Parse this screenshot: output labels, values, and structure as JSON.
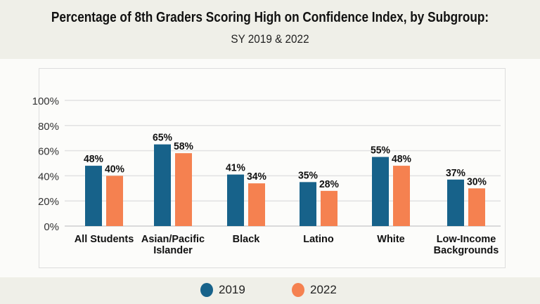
{
  "chart_data": {
    "type": "bar",
    "title": "Percentage of 8th Graders Scoring High on Confidence Index, by Subgroup:",
    "subtitle": "SY 2019 & 2022",
    "categories": [
      [
        "All Students"
      ],
      [
        "Asian/Pacific",
        "Islander"
      ],
      [
        "Black"
      ],
      [
        "Latino"
      ],
      [
        "White"
      ],
      [
        "Low-Income",
        "Backgrounds"
      ]
    ],
    "series": [
      {
        "name": "2019",
        "color": "#17628a",
        "values": [
          48,
          65,
          41,
          35,
          55,
          37
        ]
      },
      {
        "name": "2022",
        "color": "#f58150",
        "values": [
          40,
          58,
          34,
          28,
          48,
          30
        ]
      }
    ],
    "ylim": [
      0,
      100
    ],
    "yticks": [
      "0%",
      "20%",
      "40%",
      "60%",
      "80%",
      "100%"
    ],
    "grid": true,
    "legend": "bottom"
  }
}
